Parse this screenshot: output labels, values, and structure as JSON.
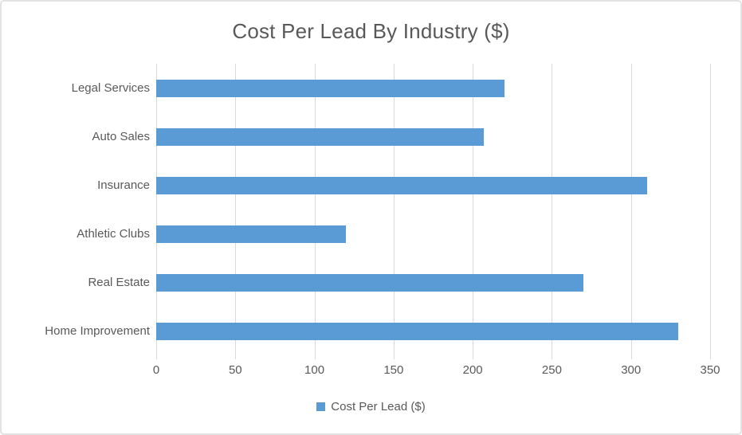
{
  "frame": {
    "background_color": "#ffffff",
    "border_color": "#e2e2e2"
  },
  "chart_data": {
    "type": "bar",
    "orientation": "horizontal",
    "title": "Cost Per Lead By Industry ($)",
    "categories": [
      "Legal Services",
      "Auto Sales",
      "Insurance",
      "Athletic Clubs",
      "Real Estate",
      "Home Improvement"
    ],
    "series": [
      {
        "name": "Cost Per Lead ($)",
        "values": [
          220,
          207,
          310,
          120,
          270,
          330
        ]
      }
    ],
    "xlabel": "",
    "ylabel": "",
    "xlim": [
      0,
      350
    ],
    "x_ticks": [
      0,
      50,
      100,
      150,
      200,
      250,
      300,
      350
    ],
    "grid": true,
    "gridline_color": "#d9d9d9",
    "bar_color": "#5b9bd5",
    "text_color": "#595959",
    "legend_position": "bottom"
  },
  "legend": {
    "label": "Cost Per Lead ($)",
    "marker_color": "#5b9bd5"
  }
}
